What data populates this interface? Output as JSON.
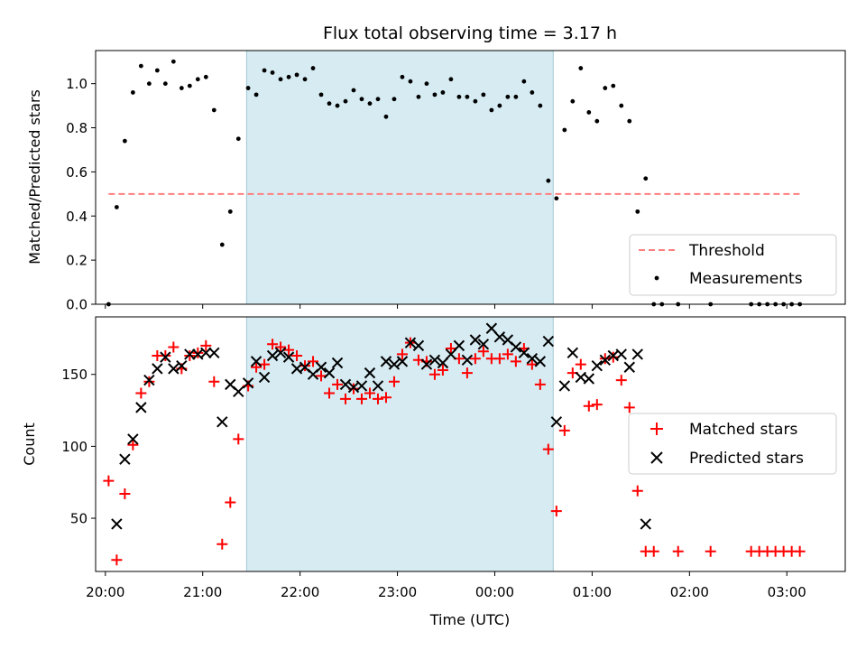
{
  "title": "Flux total observing time = 3.17 h",
  "colors": {
    "threshold": "#ff7f7f",
    "measurement": "#000000",
    "matched": "#ff0000",
    "predicted": "#000000",
    "shade": "#add8e6"
  },
  "chart_data": [
    {
      "type": "scatter",
      "ylabel": "Matched/Predicted stars",
      "xlim": [
        "19:54",
        "03:36"
      ],
      "ylim": [
        0,
        1.15
      ],
      "y_ticks": [
        "0.0",
        "0.2",
        "0.4",
        "0.6",
        "0.8",
        "1.0"
      ],
      "shaded_span": [
        "21:27",
        "00:36"
      ],
      "legend": {
        "position": "lower right",
        "entries": [
          "Threshold",
          "Measurements"
        ]
      },
      "threshold": {
        "name": "Threshold",
        "y": 0.5,
        "x": [
          "20:02",
          "03:08"
        ]
      },
      "series": [
        {
          "name": "Measurements",
          "points": [
            [
              "20:02",
              0.0
            ],
            [
              "20:07",
              0.44
            ],
            [
              "20:12",
              0.74
            ],
            [
              "20:17",
              0.96
            ],
            [
              "20:22",
              1.08
            ],
            [
              "20:27",
              1.0
            ],
            [
              "20:32",
              1.06
            ],
            [
              "20:37",
              1.0
            ],
            [
              "20:42",
              1.1
            ],
            [
              "20:47",
              0.98
            ],
            [
              "20:52",
              0.99
            ],
            [
              "20:57",
              1.02
            ],
            [
              "21:02",
              1.03
            ],
            [
              "21:07",
              0.88
            ],
            [
              "21:12",
              0.27
            ],
            [
              "21:17",
              0.42
            ],
            [
              "21:22",
              0.75
            ],
            [
              "21:28",
              0.98
            ],
            [
              "21:33",
              0.95
            ],
            [
              "21:38",
              1.06
            ],
            [
              "21:43",
              1.05
            ],
            [
              "21:48",
              1.02
            ],
            [
              "21:53",
              1.03
            ],
            [
              "21:58",
              1.04
            ],
            [
              "22:03",
              1.02
            ],
            [
              "22:08",
              1.07
            ],
            [
              "22:13",
              0.95
            ],
            [
              "22:18",
              0.91
            ],
            [
              "22:23",
              0.9
            ],
            [
              "22:28",
              0.92
            ],
            [
              "22:33",
              0.97
            ],
            [
              "22:38",
              0.93
            ],
            [
              "22:43",
              0.91
            ],
            [
              "22:48",
              0.93
            ],
            [
              "22:53",
              0.85
            ],
            [
              "22:58",
              0.93
            ],
            [
              "23:03",
              1.03
            ],
            [
              "23:08",
              1.01
            ],
            [
              "23:13",
              0.94
            ],
            [
              "23:18",
              1.0
            ],
            [
              "23:23",
              0.95
            ],
            [
              "23:28",
              0.96
            ],
            [
              "23:33",
              1.02
            ],
            [
              "23:38",
              0.94
            ],
            [
              "23:43",
              0.94
            ],
            [
              "23:48",
              0.92
            ],
            [
              "23:53",
              0.95
            ],
            [
              "23:58",
              0.88
            ],
            [
              "00:03",
              0.9
            ],
            [
              "00:08",
              0.94
            ],
            [
              "00:13",
              0.94
            ],
            [
              "00:18",
              1.01
            ],
            [
              "00:23",
              0.96
            ],
            [
              "00:28",
              0.9
            ],
            [
              "00:33",
              0.56
            ],
            [
              "00:38",
              0.48
            ],
            [
              "00:43",
              0.79
            ],
            [
              "00:48",
              0.92
            ],
            [
              "00:53",
              1.07
            ],
            [
              "00:58",
              0.87
            ],
            [
              "01:03",
              0.83
            ],
            [
              "01:08",
              0.98
            ],
            [
              "01:13",
              0.99
            ],
            [
              "01:18",
              0.9
            ],
            [
              "01:23",
              0.83
            ],
            [
              "01:28",
              0.42
            ],
            [
              "01:33",
              0.57
            ],
            [
              "01:38",
              0.0
            ],
            [
              "01:43",
              0.0
            ],
            [
              "01:53",
              0.0
            ],
            [
              "02:13",
              0.0
            ],
            [
              "02:38",
              0.0
            ],
            [
              "02:43",
              0.0
            ],
            [
              "02:48",
              0.0
            ],
            [
              "02:53",
              0.0
            ],
            [
              "02:58",
              0.0
            ],
            [
              "03:03",
              0.0
            ],
            [
              "03:08",
              0.0
            ]
          ]
        }
      ]
    },
    {
      "type": "scatter",
      "xlabel": "Time (UTC)",
      "ylabel": "Count",
      "xlim": [
        "19:54",
        "03:36"
      ],
      "ylim": [
        13,
        190
      ],
      "x_ticks": [
        "20:00",
        "21:00",
        "22:00",
        "23:00",
        "00:00",
        "01:00",
        "02:00",
        "03:00"
      ],
      "y_ticks": [
        "50",
        "100",
        "150"
      ],
      "shaded_span": [
        "21:27",
        "00:36"
      ],
      "legend": {
        "position": "right",
        "entries": [
          "Matched stars",
          "Predicted stars"
        ]
      },
      "series": [
        {
          "name": "Matched stars",
          "marker": "+",
          "points": [
            [
              "20:02",
              76
            ],
            [
              "20:07",
              21
            ],
            [
              "20:12",
              67
            ],
            [
              "20:17",
              101
            ],
            [
              "20:22",
              137
            ],
            [
              "20:27",
              145
            ],
            [
              "20:32",
              163
            ],
            [
              "20:37",
              163
            ],
            [
              "20:42",
              169
            ],
            [
              "20:47",
              154
            ],
            [
              "20:52",
              163
            ],
            [
              "20:57",
              165
            ],
            [
              "21:02",
              170
            ],
            [
              "21:07",
              145
            ],
            [
              "21:12",
              32
            ],
            [
              "21:17",
              61
            ],
            [
              "21:22",
              105
            ],
            [
              "21:28",
              142
            ],
            [
              "21:33",
              155
            ],
            [
              "21:38",
              157
            ],
            [
              "21:43",
              171
            ],
            [
              "21:48",
              169
            ],
            [
              "21:53",
              167
            ],
            [
              "21:58",
              163
            ],
            [
              "22:03",
              156
            ],
            [
              "22:08",
              159
            ],
            [
              "22:13",
              149
            ],
            [
              "22:18",
              137
            ],
            [
              "22:23",
              143
            ],
            [
              "22:28",
              133
            ],
            [
              "22:33",
              140
            ],
            [
              "22:38",
              133
            ],
            [
              "22:43",
              137
            ],
            [
              "22:48",
              133
            ],
            [
              "22:53",
              134
            ],
            [
              "22:58",
              145
            ],
            [
              "23:03",
              164
            ],
            [
              "23:08",
              172
            ],
            [
              "23:13",
              160
            ],
            [
              "23:18",
              159
            ],
            [
              "23:23",
              150
            ],
            [
              "23:28",
              153
            ],
            [
              "23:33",
              168
            ],
            [
              "23:38",
              161
            ],
            [
              "23:43",
              151
            ],
            [
              "23:48",
              161
            ],
            [
              "23:53",
              166
            ],
            [
              "23:58",
              161
            ],
            [
              "00:03",
              161
            ],
            [
              "00:08",
              164
            ],
            [
              "00:13",
              159
            ],
            [
              "00:18",
              168
            ],
            [
              "00:23",
              157
            ],
            [
              "00:28",
              143
            ],
            [
              "00:33",
              98
            ],
            [
              "00:38",
              55
            ],
            [
              "00:43",
              111
            ],
            [
              "00:48",
              151
            ],
            [
              "00:53",
              157
            ],
            [
              "00:58",
              128
            ],
            [
              "01:03",
              129
            ],
            [
              "01:08",
              161
            ],
            [
              "01:13",
              162
            ],
            [
              "01:18",
              146
            ],
            [
              "01:23",
              127
            ],
            [
              "01:28",
              69
            ],
            [
              "01:33",
              27
            ],
            [
              "01:38",
              27
            ],
            [
              "01:53",
              27
            ],
            [
              "02:13",
              27
            ],
            [
              "02:38",
              27
            ],
            [
              "02:43",
              27
            ],
            [
              "02:48",
              27
            ],
            [
              "02:53",
              27
            ],
            [
              "02:58",
              27
            ],
            [
              "03:03",
              27
            ],
            [
              "03:08",
              27
            ]
          ]
        },
        {
          "name": "Predicted stars",
          "marker": "x",
          "points": [
            [
              "20:07",
              46
            ],
            [
              "20:12",
              91
            ],
            [
              "20:17",
              105
            ],
            [
              "20:22",
              127
            ],
            [
              "20:27",
              146
            ],
            [
              "20:32",
              154
            ],
            [
              "20:37",
              162
            ],
            [
              "20:42",
              154
            ],
            [
              "20:47",
              156
            ],
            [
              "20:52",
              164
            ],
            [
              "20:57",
              164
            ],
            [
              "21:02",
              165
            ],
            [
              "21:07",
              165
            ],
            [
              "21:12",
              117
            ],
            [
              "21:17",
              143
            ],
            [
              "21:22",
              138
            ],
            [
              "21:28",
              144
            ],
            [
              "21:33",
              159
            ],
            [
              "21:38",
              148
            ],
            [
              "21:43",
              163
            ],
            [
              "21:48",
              165
            ],
            [
              "21:53",
              162
            ],
            [
              "21:58",
              154
            ],
            [
              "22:03",
              155
            ],
            [
              "22:08",
              150
            ],
            [
              "22:13",
              155
            ],
            [
              "22:18",
              151
            ],
            [
              "22:23",
              158
            ],
            [
              "22:28",
              143
            ],
            [
              "22:33",
              141
            ],
            [
              "22:38",
              142
            ],
            [
              "22:43",
              151
            ],
            [
              "22:48",
              142
            ],
            [
              "22:53",
              159
            ],
            [
              "22:58",
              157
            ],
            [
              "23:03",
              159
            ],
            [
              "23:08",
              172
            ],
            [
              "23:13",
              170
            ],
            [
              "23:18",
              157
            ],
            [
              "23:23",
              160
            ],
            [
              "23:28",
              158
            ],
            [
              "23:33",
              164
            ],
            [
              "23:38",
              170
            ],
            [
              "23:43",
              160
            ],
            [
              "23:48",
              174
            ],
            [
              "23:53",
              171
            ],
            [
              "23:58",
              182
            ],
            [
              "00:03",
              176
            ],
            [
              "00:08",
              174
            ],
            [
              "00:13",
              169
            ],
            [
              "00:18",
              165
            ],
            [
              "00:23",
              161
            ],
            [
              "00:28",
              159
            ],
            [
              "00:33",
              173
            ],
            [
              "00:38",
              117
            ],
            [
              "00:43",
              142
            ],
            [
              "00:48",
              165
            ],
            [
              "00:53",
              148
            ],
            [
              "00:58",
              147
            ],
            [
              "01:03",
              156
            ],
            [
              "01:08",
              160
            ],
            [
              "01:13",
              163
            ],
            [
              "01:18",
              164
            ],
            [
              "01:23",
              155
            ],
            [
              "01:28",
              164
            ],
            [
              "01:33",
              46
            ]
          ]
        }
      ]
    }
  ]
}
